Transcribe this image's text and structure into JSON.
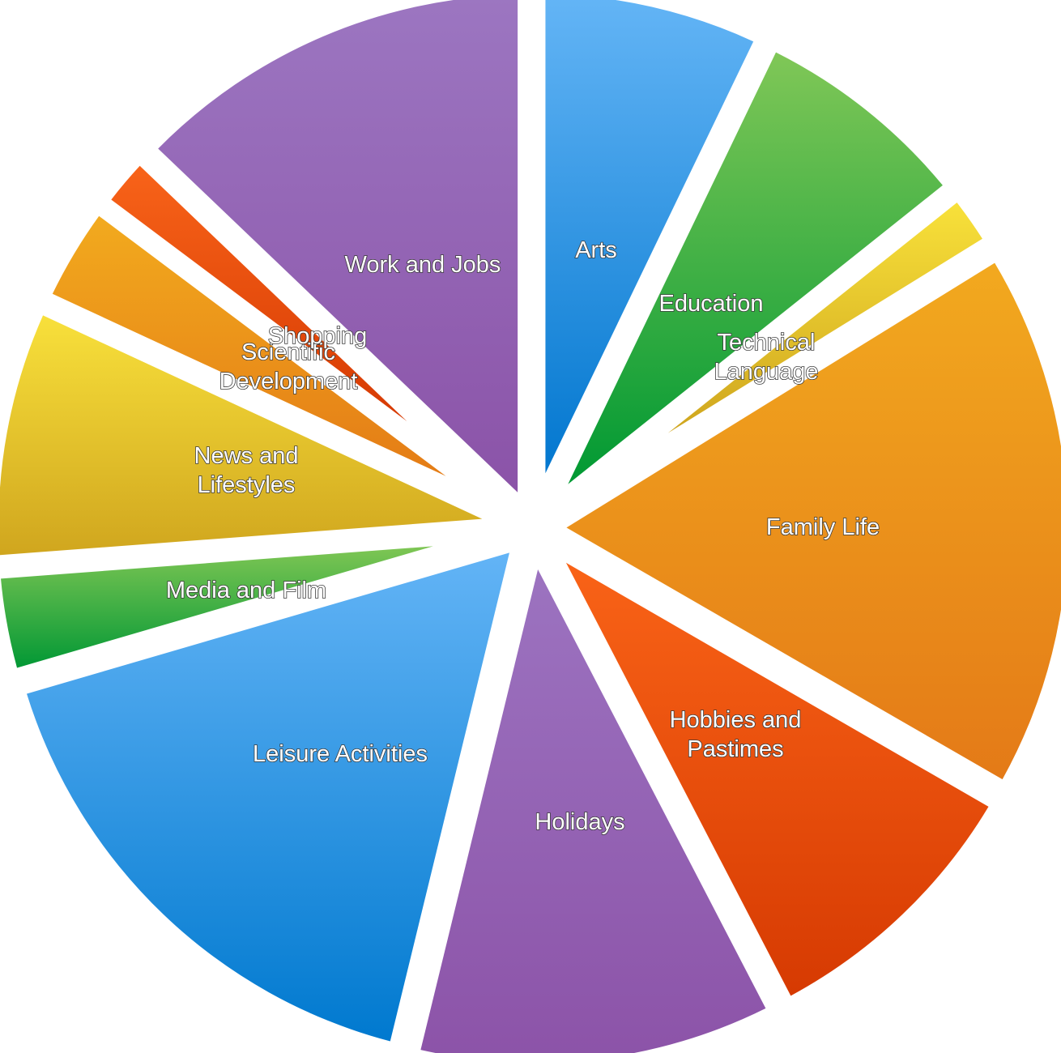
{
  "chart_data": {
    "type": "pie",
    "start": "12 o'clock",
    "direction": "clockwise",
    "slices": [
      {
        "label": "Arts",
        "value": 7.5,
        "color_top": "#64B5F6",
        "color_bottom": "#0277CF"
      },
      {
        "label": "Education",
        "value": 7.5,
        "color_top": "#80C757",
        "color_bottom": "#009933"
      },
      {
        "label": "Technical Language",
        "value": 2.0,
        "color_top": "#F8E13A",
        "color_bottom": "#CFA51E"
      },
      {
        "label": "Family Life",
        "value": 18.0,
        "color_top": "#F2A91F",
        "color_bottom": "#E47A17"
      },
      {
        "label": "Hobbies and Pastimes",
        "value": 9.5,
        "color_top": "#F96317",
        "color_bottom": "#D63A02"
      },
      {
        "label": "Holidays",
        "value": 12.0,
        "color_top": "#9C73C0",
        "color_bottom": "#8C53A8"
      },
      {
        "label": "Leisure Activities",
        "value": 17.5,
        "color_top": "#63B4F6",
        "color_bottom": "#0079CF"
      },
      {
        "label": "Media and Film",
        "value": 3.5,
        "color_top": "#7FC654",
        "color_bottom": "#029835"
      },
      {
        "label": "News and Lifestyles",
        "value": 8.5,
        "color_top": "#F8E03B",
        "color_bottom": "#D0A61E"
      },
      {
        "label": "Scientific Development",
        "value": 3.5,
        "color_top": "#F2AA1E",
        "color_bottom": "#E47C16"
      },
      {
        "label": "Shopping",
        "value": 2.0,
        "color_top": "#F86319",
        "color_bottom": "#D63A03"
      },
      {
        "label": "Work and Jobs",
        "value": 13.5,
        "color_top": "#9C76C1",
        "color_bottom": "#8B53A8"
      }
    ]
  }
}
